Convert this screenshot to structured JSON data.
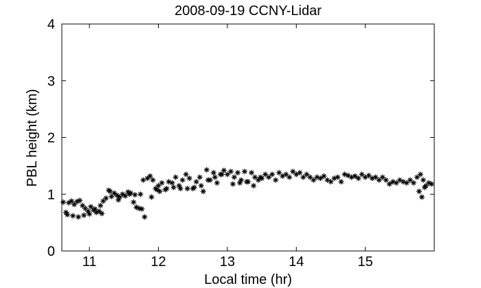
{
  "chart_data": {
    "type": "scatter",
    "title": "2008-09-19 CCNY-Lidar",
    "xlabel": "Local time (hr)",
    "ylabel": "PBL height (km)",
    "xlim": [
      10.6,
      16.0
    ],
    "ylim": [
      0,
      4
    ],
    "xticks": [
      11,
      12,
      13,
      14,
      15
    ],
    "yticks": [
      0,
      1,
      2,
      3,
      4
    ],
    "grid": false,
    "legend": "none",
    "marker": "asterisk",
    "color": "#000000",
    "x": [
      10.62,
      10.66,
      10.7,
      10.74,
      10.78,
      10.82,
      10.86,
      10.9,
      10.94,
      10.98,
      11.02,
      11.06,
      11.1,
      11.14,
      11.18,
      10.68,
      10.76,
      10.84,
      10.92,
      11.0,
      11.08,
      11.16,
      11.2,
      11.24,
      11.28,
      11.32,
      11.36,
      11.4,
      11.44,
      11.48,
      11.52,
      11.56,
      11.6,
      11.64,
      11.68,
      11.72,
      11.76,
      11.8,
      11.84,
      11.88,
      11.92,
      11.96,
      11.3,
      11.42,
      11.58,
      11.66,
      11.74,
      11.78,
      11.9,
      11.98,
      12.0,
      12.05,
      12.1,
      12.15,
      12.2,
      12.25,
      12.3,
      12.35,
      12.4,
      12.45,
      12.5,
      12.55,
      12.6,
      12.65,
      12.7,
      12.75,
      12.8,
      12.85,
      12.9,
      12.95,
      12.02,
      12.12,
      12.22,
      12.32,
      12.42,
      12.52,
      12.62,
      12.72,
      12.82,
      12.92,
      13.0,
      13.05,
      13.1,
      13.15,
      13.2,
      13.25,
      13.3,
      13.35,
      13.4,
      13.45,
      13.5,
      13.55,
      13.6,
      13.65,
      13.7,
      13.75,
      13.8,
      13.85,
      13.9,
      13.95,
      13.08,
      13.18,
      13.28,
      13.38,
      13.48,
      14.0,
      14.05,
      14.1,
      14.15,
      14.2,
      14.25,
      14.3,
      14.35,
      14.4,
      14.45,
      14.5,
      14.55,
      14.6,
      14.65,
      14.7,
      14.75,
      14.8,
      14.85,
      14.9,
      14.95,
      15.0,
      15.05,
      15.1,
      15.15,
      15.2,
      15.25,
      15.3,
      15.35,
      15.4,
      15.45,
      15.5,
      15.55,
      15.6,
      15.65,
      15.7,
      15.75,
      15.8,
      15.84,
      15.88,
      15.92,
      15.96,
      15.78,
      15.82,
      15.86
    ],
    "y": [
      0.86,
      0.68,
      0.85,
      0.88,
      0.82,
      0.87,
      0.89,
      0.8,
      0.75,
      0.7,
      0.78,
      0.72,
      0.68,
      0.7,
      0.66,
      0.64,
      0.62,
      0.6,
      0.63,
      0.65,
      0.74,
      0.8,
      0.88,
      0.93,
      1.07,
      0.96,
      1.02,
      0.98,
      0.95,
      1.0,
      0.97,
      1.04,
      1.02,
      0.86,
      0.77,
      0.75,
      0.74,
      0.6,
      1.28,
      1.32,
      1.25,
      1.1,
      1.05,
      0.9,
      1.0,
      0.99,
      1.0,
      1.25,
      0.95,
      1.08,
      1.15,
      1.2,
      1.08,
      1.22,
      1.2,
      1.3,
      1.15,
      1.25,
      1.35,
      1.28,
      1.1,
      1.22,
      1.3,
      1.05,
      1.43,
      1.25,
      1.38,
      1.2,
      1.35,
      1.42,
      1.05,
      1.1,
      1.12,
      1.1,
      1.1,
      1.12,
      1.15,
      1.25,
      1.3,
      1.35,
      1.35,
      1.4,
      1.3,
      1.38,
      1.25,
      1.4,
      1.22,
      1.38,
      1.3,
      1.25,
      1.28,
      1.35,
      1.3,
      1.35,
      1.25,
      1.38,
      1.32,
      1.35,
      1.3,
      1.4,
      1.18,
      1.2,
      1.22,
      1.15,
      1.3,
      1.35,
      1.38,
      1.3,
      1.35,
      1.3,
      1.25,
      1.3,
      1.28,
      1.32,
      1.25,
      1.22,
      1.28,
      1.3,
      1.22,
      1.35,
      1.33,
      1.3,
      1.32,
      1.28,
      1.35,
      1.3,
      1.33,
      1.28,
      1.3,
      1.25,
      1.3,
      1.25,
      1.18,
      1.22,
      1.2,
      1.25,
      1.22,
      1.2,
      1.25,
      1.2,
      1.3,
      1.35,
      1.25,
      1.15,
      1.2,
      1.18,
      1.05,
      0.95,
      1.12
    ]
  }
}
